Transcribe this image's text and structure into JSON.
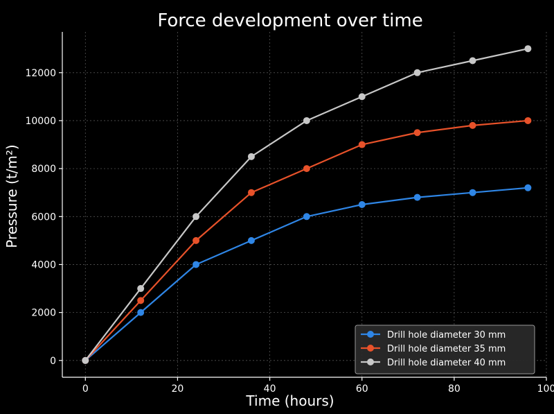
{
  "chart_data": {
    "type": "line",
    "title": "Force development over time",
    "xlabel": "Time (hours)",
    "ylabel": "Pressure (t/m²)",
    "xlim": [
      -5,
      100
    ],
    "ylim": [
      -700,
      13700
    ],
    "xticks": [
      0,
      20,
      40,
      60,
      80,
      100
    ],
    "yticks": [
      0,
      2000,
      4000,
      6000,
      8000,
      10000,
      12000
    ],
    "grid": true,
    "legend_position": "bottom-right",
    "x": [
      0,
      12,
      24,
      36,
      48,
      60,
      72,
      84,
      96
    ],
    "series": [
      {
        "name": "Drill hole diameter 30 mm",
        "color": "#2f86e6",
        "values": [
          0,
          2000,
          4000,
          5000,
          6000,
          6500,
          6800,
          7000,
          7200
        ]
      },
      {
        "name": "Drill hole diameter 35 mm",
        "color": "#e8522a",
        "values": [
          0,
          2500,
          5000,
          7000,
          8000,
          9000,
          9500,
          9800,
          10000
        ]
      },
      {
        "name": "Drill hole diameter 40 mm",
        "color": "#c8c8c8",
        "values": [
          0,
          3000,
          6000,
          8500,
          10000,
          11000,
          12000,
          12500,
          13000
        ]
      }
    ]
  }
}
